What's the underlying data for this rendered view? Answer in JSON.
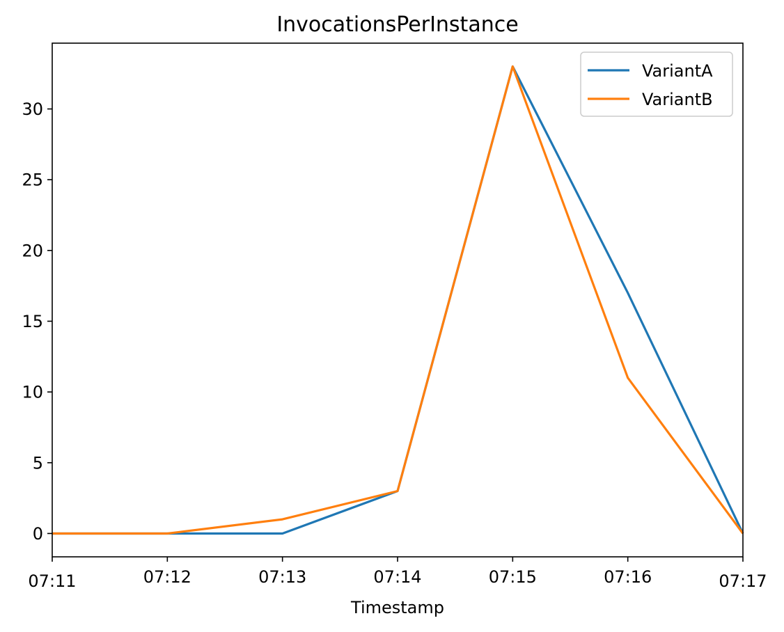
{
  "chart_data": {
    "type": "line",
    "title": "InvocationsPerInstance",
    "xlabel": "Timestamp",
    "ylabel": "",
    "x": [
      "07:11",
      "07:12",
      "07:13",
      "07:14",
      "07:15",
      "07:16",
      "07:17"
    ],
    "x_tick_labels": [
      "07:11",
      "07:12",
      "07:13",
      "07:14",
      "07:15",
      "07:16",
      "07:17"
    ],
    "y_ticks": [
      0,
      5,
      10,
      15,
      20,
      25,
      30
    ],
    "ylim": [
      -1.65,
      34.65
    ],
    "grid": false,
    "legend_position": "upper right",
    "series": [
      {
        "name": "VariantA",
        "color": "#1f77b4",
        "values": [
          0,
          0,
          0,
          3,
          33,
          17,
          0
        ]
      },
      {
        "name": "VariantB",
        "color": "#ff7f0e",
        "values": [
          0,
          0,
          1,
          3,
          33,
          11,
          0
        ]
      }
    ]
  }
}
